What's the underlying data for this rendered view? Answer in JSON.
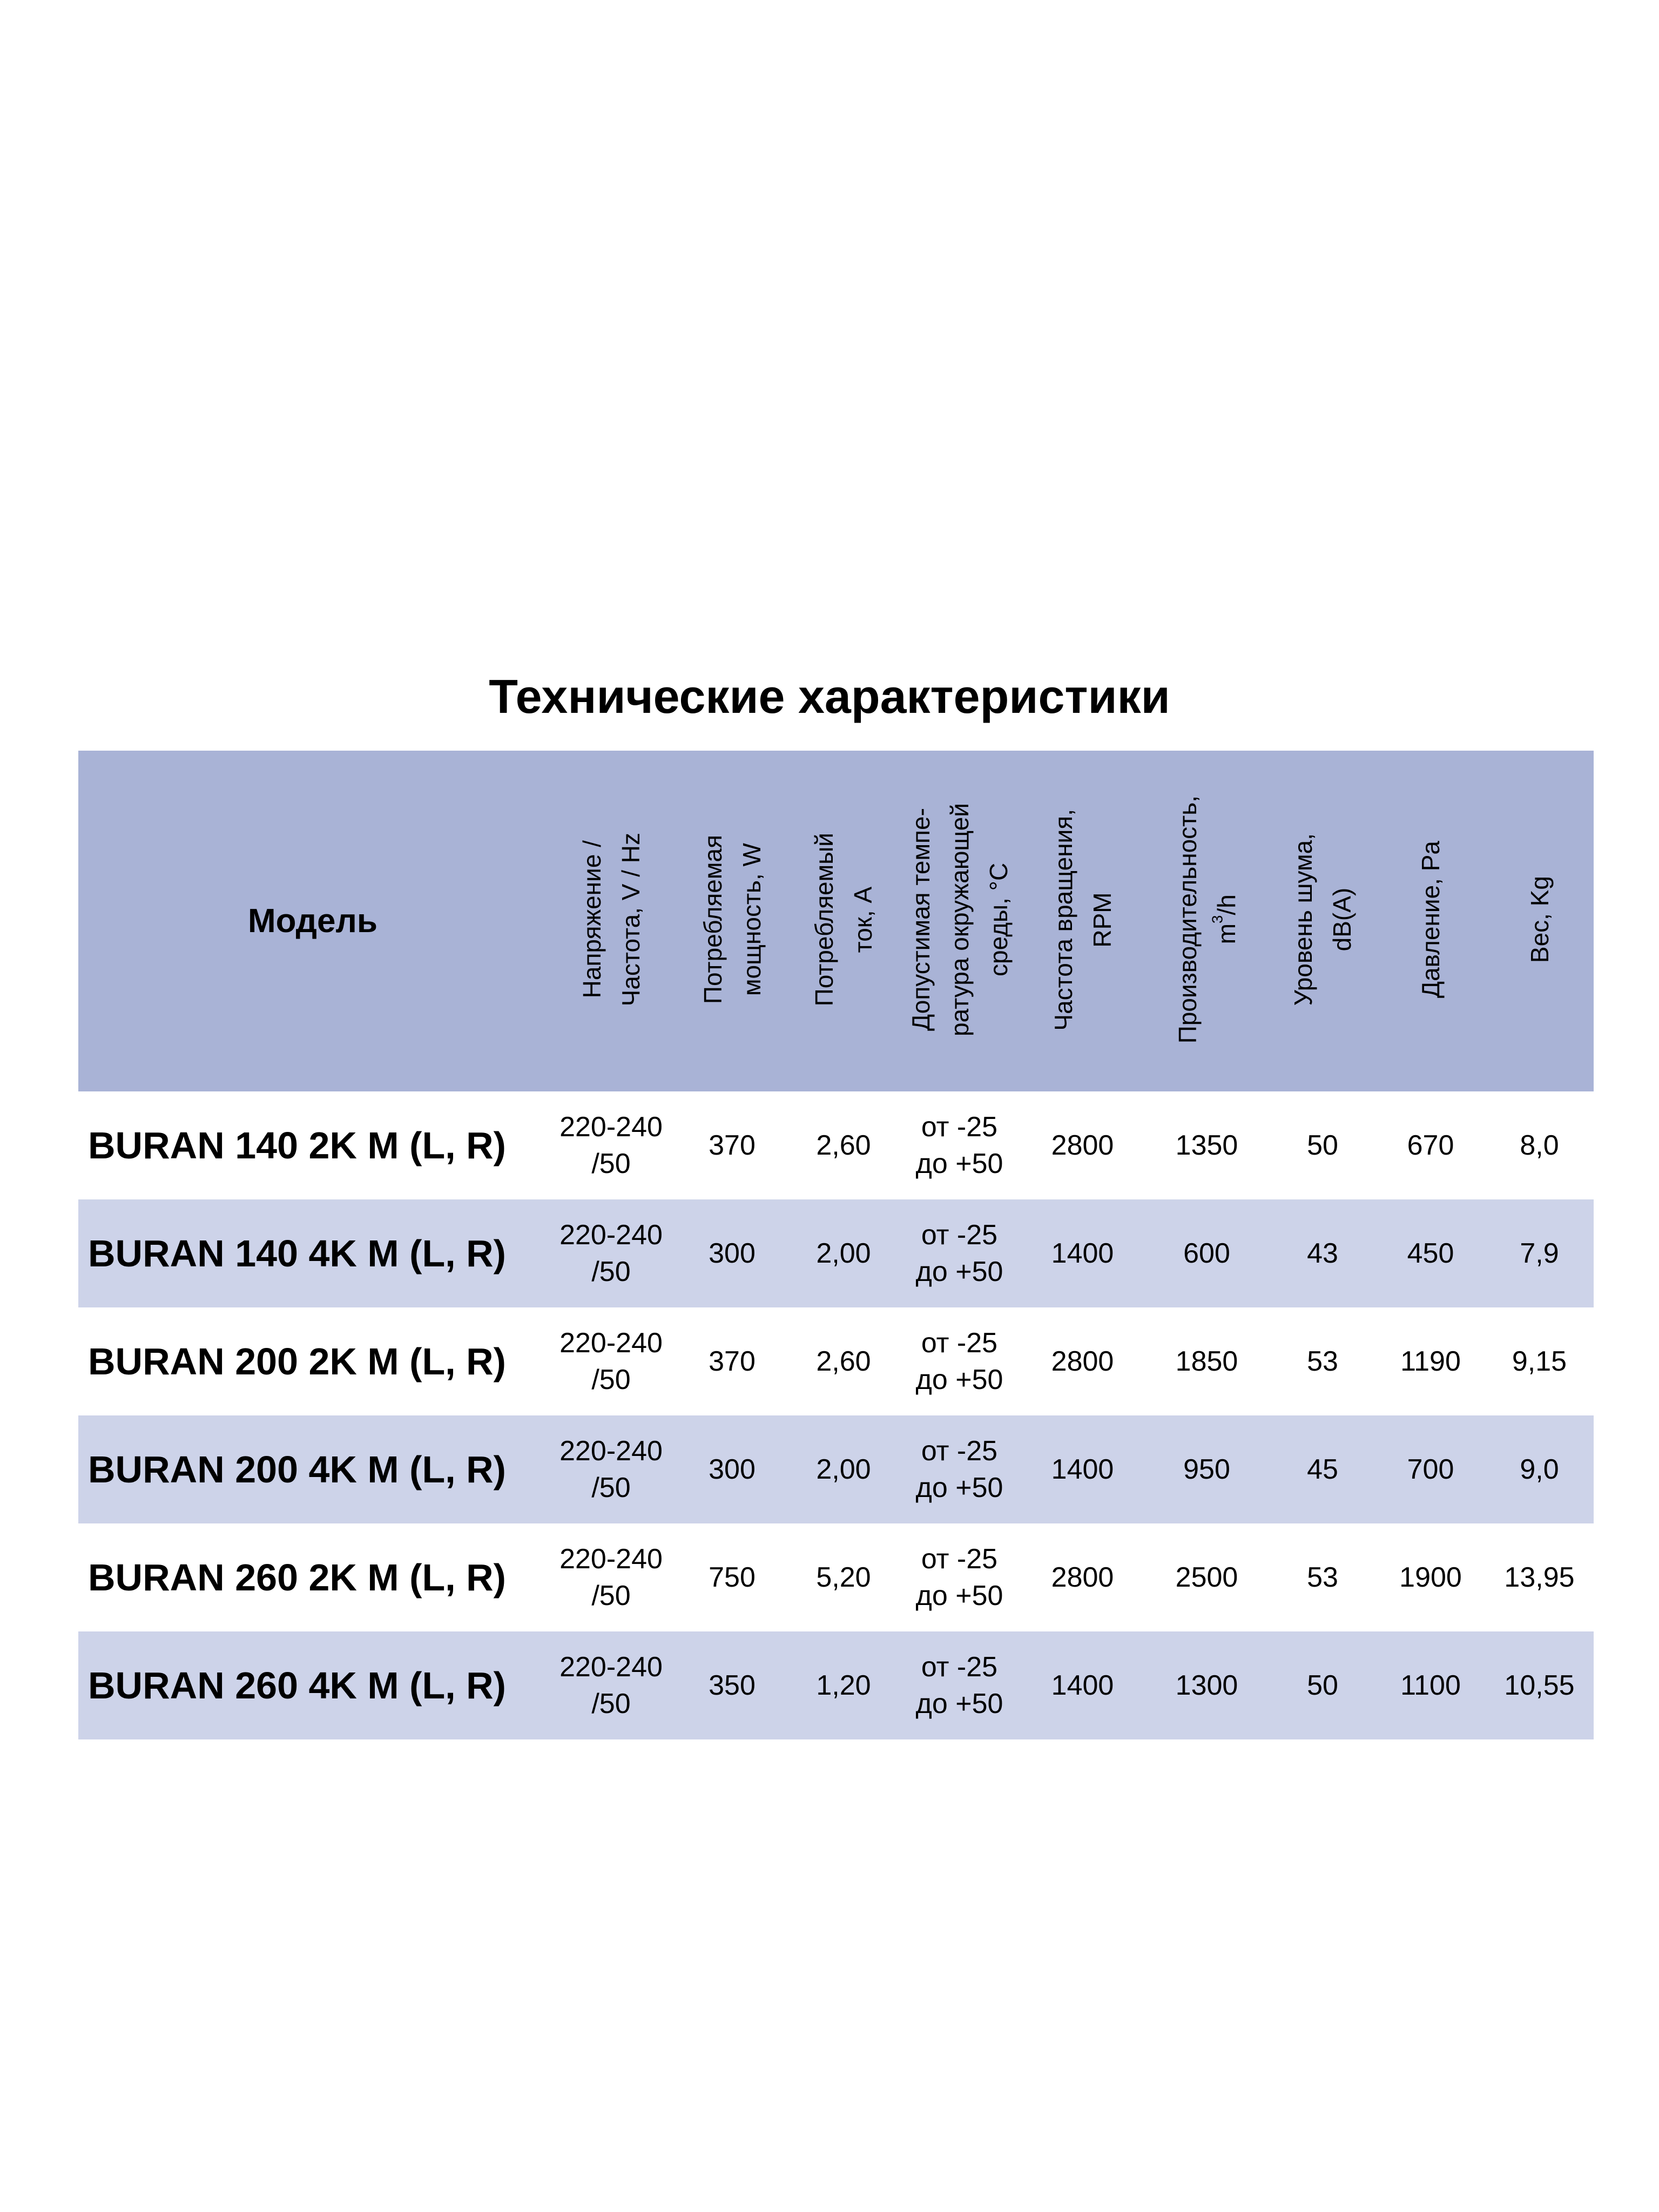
{
  "title": "Технические характеристики",
  "colors": {
    "header_bg": "#a9b3d6",
    "alt_row_bg": "#cdd3e9",
    "row_bg": "#ffffff"
  },
  "columns": [
    "Модель",
    "Напряжение /\nЧастота, V / Hz",
    "Потребляемая\nмощность, W",
    "Потребляемый\nток, А",
    "Допустимая темпе-\nратура окружающей\nсреды, °С",
    "Частота вращения,\nRPM",
    "Производительность,",
    "Уровень шума,\ndB(A)",
    "Давление, Pa",
    "Вес, Kg"
  ],
  "capacity_unit": {
    "base": "m",
    "sup": "3",
    "rest": "/h"
  },
  "rows": [
    {
      "model": "BURAN 140 2K M (L, R)",
      "voltage": [
        "220-240",
        "/50"
      ],
      "power": "370",
      "current": "2,60",
      "temp": [
        "от -25",
        "до +50"
      ],
      "rpm": "2800",
      "capacity": "1350",
      "noise": "50",
      "pressure": "670",
      "weight": "8,0"
    },
    {
      "model": "BURAN 140 4K M (L, R)",
      "voltage": [
        "220-240",
        "/50"
      ],
      "power": "300",
      "current": "2,00",
      "temp": [
        "от -25",
        "до +50"
      ],
      "rpm": "1400",
      "capacity": "600",
      "noise": "43",
      "pressure": "450",
      "weight": "7,9"
    },
    {
      "model": "BURAN 200 2K M (L, R)",
      "voltage": [
        "220-240",
        "/50"
      ],
      "power": "370",
      "current": "2,60",
      "temp": [
        "от -25",
        "до +50"
      ],
      "rpm": "2800",
      "capacity": "1850",
      "noise": "53",
      "pressure": "1190",
      "weight": "9,15"
    },
    {
      "model": "BURAN 200 4K M (L, R)",
      "voltage": [
        "220-240",
        "/50"
      ],
      "power": "300",
      "current": "2,00",
      "temp": [
        "от -25",
        "до +50"
      ],
      "rpm": "1400",
      "capacity": "950",
      "noise": "45",
      "pressure": "700",
      "weight": "9,0"
    },
    {
      "model": "BURAN 260 2K M (L, R)",
      "voltage": [
        "220-240",
        "/50"
      ],
      "power": "750",
      "current": "5,20",
      "temp": [
        "от -25",
        "до +50"
      ],
      "rpm": "2800",
      "capacity": "2500",
      "noise": "53",
      "pressure": "1900",
      "weight": "13,95"
    },
    {
      "model": "BURAN 260 4K M (L, R)",
      "voltage": [
        "220-240",
        "/50"
      ],
      "power": "350",
      "current": "1,20",
      "temp": [
        "от -25",
        "до +50"
      ],
      "rpm": "1400",
      "capacity": "1300",
      "noise": "50",
      "pressure": "1100",
      "weight": "10,55"
    }
  ]
}
